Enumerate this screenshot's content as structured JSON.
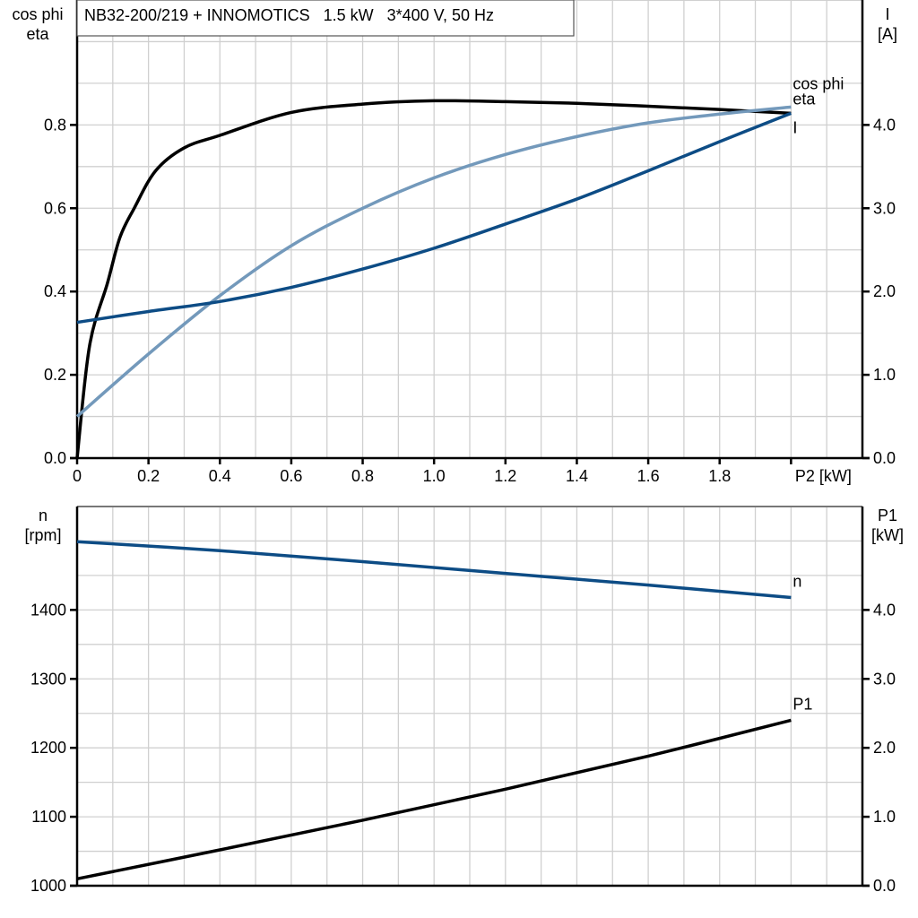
{
  "title": "NB32-200/219 + INNOMOTICS   1.5 kW   3*400 V, 50 Hz",
  "chart_data": [
    {
      "type": "line",
      "xlabel": "P2 [kW]",
      "ylabel_left": [
        "cos phi",
        "eta"
      ],
      "ylabel_right": [
        "I",
        "[A]"
      ],
      "xlim": [
        0,
        2.2
      ],
      "ylim_left": [
        0,
        1.1
      ],
      "ylim_right": [
        0,
        5.5
      ],
      "x_ticks": [
        "0",
        "0.2",
        "0.4",
        "0.6",
        "0.8",
        "1.0",
        "1.2",
        "1.4",
        "1.6",
        "1.8"
      ],
      "y_ticks_left": [
        "0.0",
        "0.2",
        "0.4",
        "0.6",
        "0.8"
      ],
      "y_ticks_right": [
        "0.0",
        "1.0",
        "2.0",
        "3.0",
        "4.0"
      ],
      "grid": true,
      "series": [
        {
          "name": "eta",
          "axis": "left",
          "color": "#000000",
          "x": [
            0,
            0.035,
            0.085,
            0.12,
            0.16,
            0.22,
            0.3,
            0.4,
            0.6,
            0.8,
            1.0,
            1.2,
            1.4,
            1.6,
            1.8,
            2.0
          ],
          "y": [
            0,
            0.27,
            0.42,
            0.53,
            0.6,
            0.69,
            0.745,
            0.775,
            0.83,
            0.85,
            0.858,
            0.856,
            0.852,
            0.845,
            0.837,
            0.828
          ]
        },
        {
          "name": "cos phi",
          "axis": "left",
          "color": "#7399bb",
          "x": [
            0,
            0.2,
            0.4,
            0.6,
            0.8,
            1.0,
            1.2,
            1.4,
            1.6,
            1.8,
            2.0
          ],
          "y": [
            0.1,
            0.25,
            0.39,
            0.51,
            0.6,
            0.673,
            0.729,
            0.772,
            0.805,
            0.826,
            0.843
          ]
        },
        {
          "name": "I",
          "axis": "right",
          "color": "#0d4c85",
          "x": [
            0,
            0.2,
            0.4,
            0.6,
            0.8,
            1.0,
            1.2,
            1.4,
            1.6,
            1.8,
            2.0
          ],
          "y": [
            1.63,
            1.76,
            1.88,
            2.05,
            2.27,
            2.52,
            2.81,
            3.11,
            3.45,
            3.8,
            4.14
          ]
        }
      ]
    },
    {
      "type": "line",
      "ylabel_left": [
        "n",
        "[rpm]"
      ],
      "ylabel_right": [
        "P1",
        "[kW]"
      ],
      "xlim": [
        0,
        2.2
      ],
      "ylim_left": [
        1000,
        1550
      ],
      "ylim_right": [
        0,
        5.5
      ],
      "y_ticks_left": [
        "1000",
        "1100",
        "1200",
        "1300",
        "1400"
      ],
      "y_ticks_right": [
        "0.0",
        "1.0",
        "2.0",
        "3.0",
        "4.0"
      ],
      "grid": true,
      "series": [
        {
          "name": "n",
          "axis": "left",
          "color": "#0d4c85",
          "x": [
            0,
            0.4,
            0.8,
            1.2,
            1.6,
            2.0
          ],
          "y": [
            1499,
            1486,
            1470,
            1453,
            1436,
            1418
          ]
        },
        {
          "name": "P1",
          "axis": "right",
          "color": "#000000",
          "x": [
            0,
            0.4,
            0.8,
            1.2,
            1.6,
            2.0
          ],
          "y": [
            0.1,
            0.52,
            0.95,
            1.4,
            1.88,
            2.4
          ]
        }
      ]
    }
  ]
}
